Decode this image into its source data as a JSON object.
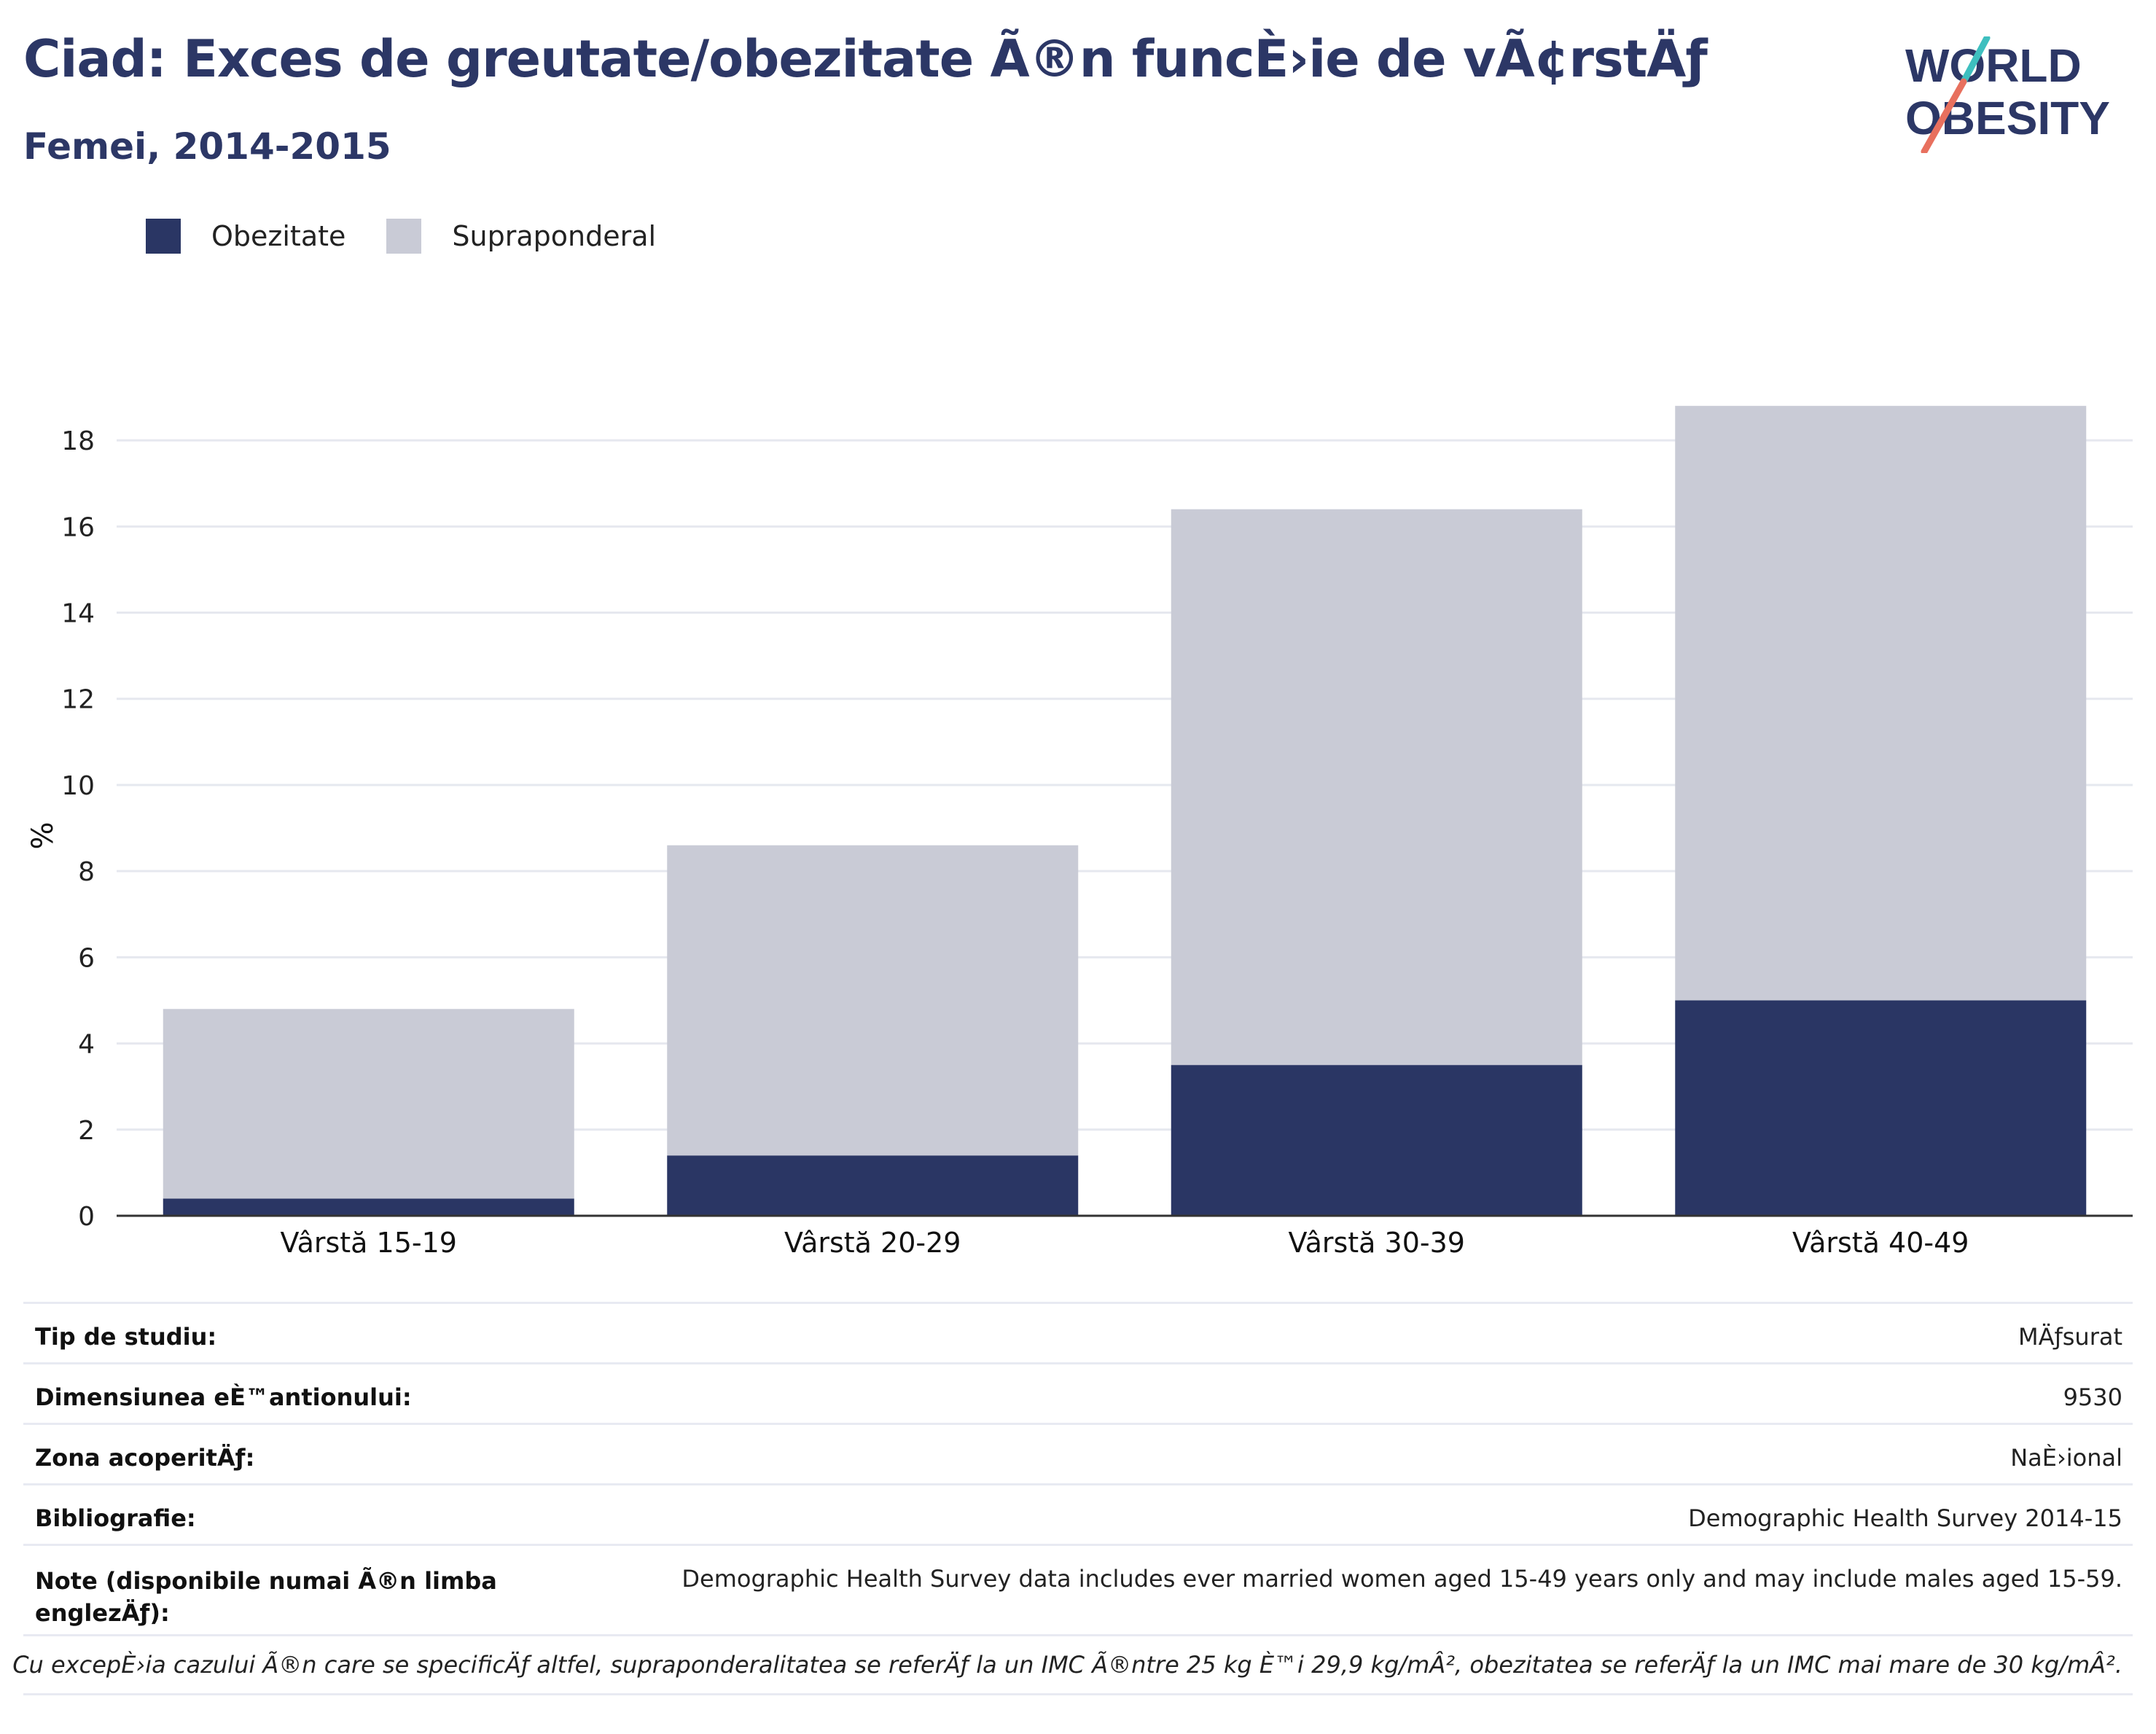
{
  "header": {
    "title": "Ciad: Exces de greutate/obezitate Ã®n funcÈ›ie de vÃ¢rstÄƒ",
    "subtitle": "Femei, 2014-2015",
    "logo_line1": "WORLD",
    "logo_line2": "OBESITY"
  },
  "colors": {
    "title": "#2c3766",
    "obesity": "#2a3664",
    "overweight": "#c9cbd6",
    "logo_teal": "#3ebfbf",
    "logo_coral": "#e8705e"
  },
  "legend": [
    {
      "label": "Obezitate",
      "color": "#2a3664"
    },
    {
      "label": "Supraponderal",
      "color": "#c9cbd6"
    }
  ],
  "chart_data": {
    "type": "bar",
    "stacked": true,
    "categories": [
      "Vârstă 15-19",
      "Vârstă 20-29",
      "Vârstă 30-39",
      "Vârstă 40-49"
    ],
    "series": [
      {
        "name": "Obezitate",
        "values": [
          0.4,
          1.4,
          3.5,
          5.0
        ]
      },
      {
        "name": "Supraponderal",
        "values": [
          4.4,
          7.2,
          12.9,
          13.8
        ]
      }
    ],
    "ylabel": "%",
    "ylim": [
      0,
      19
    ],
    "yticks": [
      0,
      2,
      4,
      6,
      8,
      10,
      12,
      14,
      16,
      18
    ],
    "grid": true,
    "legend_position": "top-left"
  },
  "info_table": [
    {
      "key": "Tip de studiu:",
      "value": "MÄƒsurat"
    },
    {
      "key": "Dimensiunea eÈ™antionului:",
      "value": "9530"
    },
    {
      "key": "Zona acoperitÄƒ:",
      "value": "NaÈ›ional"
    },
    {
      "key": "Bibliografie:",
      "value": "Demographic Health Survey 2014-15"
    },
    {
      "key": "Note (disponibile numai Ã®n limba englezÄƒ):",
      "value": "Demographic Health Survey data includes ever married women aged 15-49 years only and may include males aged 15-59."
    }
  ],
  "footnote": "Cu excepÈ›ia cazului Ã®n care se specificÄƒ altfel, supraponderalitatea se referÄƒ la un IMC Ã®ntre 25 kg È™i 29,9 kg/mÂ², obezitatea se referÄƒ la un IMC mai mare de 30 kg/mÂ²."
}
